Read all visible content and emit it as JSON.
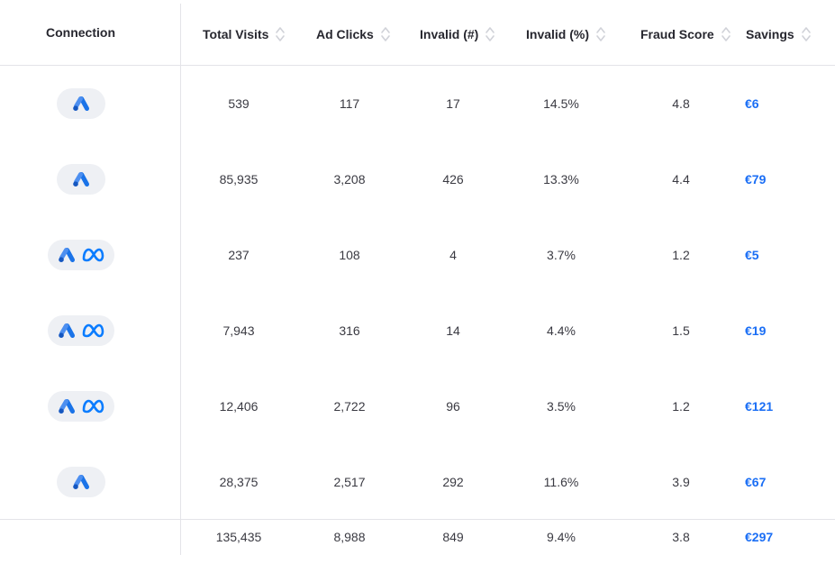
{
  "header": {
    "connection": "Connection",
    "total_visits": "Total Visits",
    "ad_clicks": "Ad Clicks",
    "invalid_count": "Invalid (#)",
    "invalid_pct": "Invalid (%)",
    "fraud_score": "Fraud Score",
    "savings": "Savings"
  },
  "colors": {
    "accent": "#1a6ef5",
    "google_ads_blue": "#1a73e8",
    "meta_blue": "#0a7cff",
    "pill_bg": "#eef0f4",
    "divider": "#e4e4e8"
  },
  "rows": [
    {
      "connections": [
        "google-ads-icon"
      ],
      "total_visits": "539",
      "ad_clicks": "117",
      "invalid_count": "17",
      "invalid_pct": "14.5%",
      "fraud_score": "4.8",
      "savings": "€6"
    },
    {
      "connections": [
        "google-ads-icon"
      ],
      "total_visits": "85,935",
      "ad_clicks": "3,208",
      "invalid_count": "426",
      "invalid_pct": "13.3%",
      "fraud_score": "4.4",
      "savings": "€79"
    },
    {
      "connections": [
        "google-ads-icon",
        "meta-icon"
      ],
      "total_visits": "237",
      "ad_clicks": "108",
      "invalid_count": "4",
      "invalid_pct": "3.7%",
      "fraud_score": "1.2",
      "savings": "€5"
    },
    {
      "connections": [
        "google-ads-icon",
        "meta-icon"
      ],
      "total_visits": "7,943",
      "ad_clicks": "316",
      "invalid_count": "14",
      "invalid_pct": "4.4%",
      "fraud_score": "1.5",
      "savings": "€19"
    },
    {
      "connections": [
        "google-ads-icon",
        "meta-icon"
      ],
      "total_visits": "12,406",
      "ad_clicks": "2,722",
      "invalid_count": "96",
      "invalid_pct": "3.5%",
      "fraud_score": "1.2",
      "savings": "€121"
    },
    {
      "connections": [
        "google-ads-icon"
      ],
      "total_visits": "28,375",
      "ad_clicks": "2,517",
      "invalid_count": "292",
      "invalid_pct": "11.6%",
      "fraud_score": "3.9",
      "savings": "€67"
    }
  ],
  "totals": {
    "total_visits": "135,435",
    "ad_clicks": "8,988",
    "invalid_count": "849",
    "invalid_pct": "9.4%",
    "fraud_score": "3.8",
    "savings": "€297"
  }
}
